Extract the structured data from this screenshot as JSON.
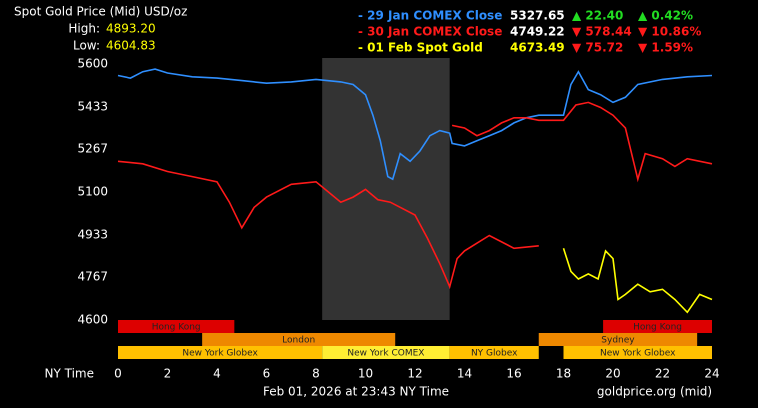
{
  "chart_data": {
    "type": "line",
    "title": "Spot Gold Price (Mid) USD/oz",
    "high_label": "High:",
    "high": "4893.20",
    "low_label": "Low:",
    "low": "4604.83",
    "xlabel": "NY Time",
    "footer": "Feb 01, 2026 at 23:43 NY Time",
    "source": "goldprice.org (mid)",
    "xlim": [
      0,
      24
    ],
    "xticks": [
      0,
      2,
      4,
      6,
      8,
      10,
      12,
      14,
      16,
      18,
      20,
      22,
      24
    ],
    "ylim": [
      4600,
      5600
    ],
    "yticks": [
      4600,
      4767,
      4933,
      5100,
      5267,
      5433,
      5600
    ],
    "shaded": [
      8.25,
      13.4
    ],
    "shade_color": "#333333",
    "series": [
      {
        "name": "- 29 Jan COMEX Close",
        "color": "#2f8fff",
        "price": "5327.65",
        "price_color": "#ffffff",
        "change": "▲ 22.40",
        "change_pct": "▲ 0.42%",
        "change_color": "#22dd22",
        "x": [
          0,
          0.5,
          1,
          1.5,
          2,
          3,
          4,
          5,
          6,
          7,
          8,
          9,
          9.5,
          10,
          10.3,
          10.6,
          10.9,
          11.1,
          11.4,
          11.8,
          12.2,
          12.6,
          13,
          13.4,
          13.5,
          14,
          14.5,
          15,
          15.5,
          16,
          16.5,
          17,
          18,
          18.3,
          18.6,
          19,
          19.5,
          20,
          20.5,
          21,
          22,
          23,
          24
        ],
        "values": [
          5555,
          5545,
          5570,
          5580,
          5565,
          5550,
          5545,
          5535,
          5525,
          5530,
          5540,
          5530,
          5520,
          5480,
          5400,
          5300,
          5160,
          5150,
          5250,
          5220,
          5260,
          5320,
          5340,
          5330,
          5290,
          5280,
          5300,
          5320,
          5340,
          5370,
          5390,
          5400,
          5400,
          5520,
          5570,
          5500,
          5480,
          5450,
          5470,
          5520,
          5540,
          5550,
          5555
        ]
      },
      {
        "name": "- 30 Jan COMEX Close",
        "color": "#ff1a1a",
        "price": "4749.22",
        "price_color": "#ffffff",
        "change": "▼ 578.44",
        "change_pct": "▼ 10.86%",
        "change_color": "#ff1a1a",
        "x": [
          0,
          1,
          2,
          3,
          4,
          4.5,
          5,
          5.5,
          6,
          7,
          8,
          8.5,
          9,
          9.5,
          10,
          10.5,
          11,
          12,
          12.5,
          13,
          13.4,
          13.7,
          14,
          14.5,
          15,
          16,
          17,
          null,
          13.5,
          14,
          14.5,
          15,
          15.5,
          16,
          16.5,
          17,
          18,
          18.5,
          19,
          19.5,
          20,
          20.5,
          21,
          21.3,
          22,
          22.5,
          23,
          24
        ],
        "values": [
          5220,
          5210,
          5180,
          5160,
          5140,
          5060,
          4960,
          5040,
          5080,
          5130,
          5140,
          5100,
          5060,
          5080,
          5110,
          5070,
          5060,
          5010,
          4920,
          4820,
          4730,
          4840,
          4870,
          4900,
          4930,
          4880,
          4890,
          null,
          5360,
          5350,
          5320,
          5340,
          5370,
          5390,
          5390,
          5380,
          5380,
          5440,
          5450,
          5430,
          5400,
          5350,
          5150,
          5250,
          5230,
          5200,
          5230,
          5210
        ]
      },
      {
        "name": "- 01 Feb Spot Gold",
        "color": "#ffff00",
        "price": "4673.49",
        "price_color": "#ffff00",
        "change": "▼ 75.72",
        "change_pct": "▼ 1.59%",
        "change_color": "#ff1a1a",
        "x": [
          18,
          18.3,
          18.6,
          19,
          19.4,
          19.7,
          20,
          20.2,
          20.5,
          21,
          21.5,
          22,
          22.5,
          23,
          23.5,
          24
        ],
        "values": [
          4880,
          4790,
          4760,
          4780,
          4760,
          4870,
          4840,
          4680,
          4700,
          4740,
          4710,
          4720,
          4680,
          4630,
          4700,
          4680
        ]
      }
    ],
    "sessions": [
      {
        "name": "Hong Kong",
        "start": 0,
        "end": 4.7,
        "row": 0,
        "color": "#dd0000"
      },
      {
        "name": "Hong Kong",
        "start": 19.6,
        "end": 24,
        "row": 0,
        "color": "#dd0000"
      },
      {
        "name": "London",
        "start": 3.4,
        "end": 11.2,
        "row": 1,
        "color": "#ee8800"
      },
      {
        "name": "Sydney",
        "start": 17,
        "end": 23.4,
        "row": 1,
        "color": "#ee8800"
      },
      {
        "name": "New York Globex",
        "start": 0,
        "end": 8.25,
        "row": 2,
        "color": "#ffc000"
      },
      {
        "name": "New York COMEX",
        "start": 8.25,
        "end": 13.4,
        "row": 2,
        "color": "#ffee33"
      },
      {
        "name": "NY Globex",
        "start": 13.4,
        "end": 17,
        "row": 2,
        "color": "#ffc000"
      },
      {
        "name": "New York Globex",
        "start": 18,
        "end": 24,
        "row": 2,
        "color": "#ffc000"
      }
    ]
  }
}
